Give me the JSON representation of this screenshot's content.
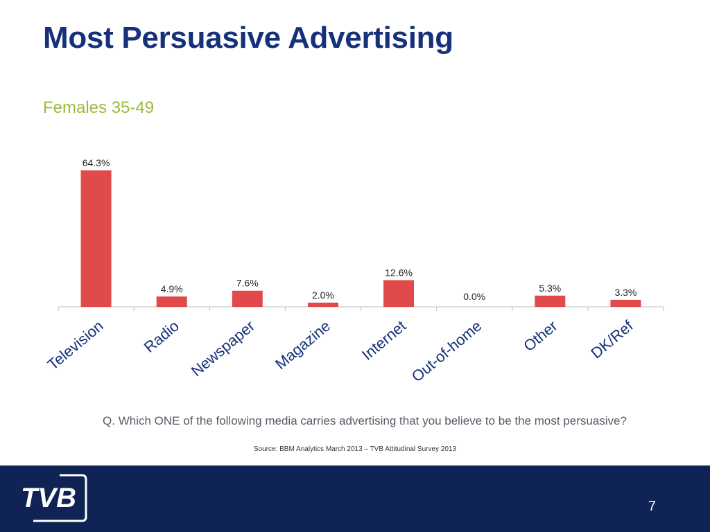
{
  "slide": {
    "title": "Most Persuasive Advertising",
    "subtitle": "Females 35-49",
    "question": "Q. Which ONE of the following media carries advertising that you believe to be the most persuasive?",
    "source": "Source: BBM Analytics March 2013 – TVB Attitudinal Survey 2013",
    "page_number": "7",
    "logo_text": "TVB"
  },
  "colors": {
    "title": "#16307a",
    "subtitle": "#9bbb3c",
    "bar": "#e04a4a",
    "category_label": "#16307a",
    "footer": "#0f2355"
  },
  "chart_data": {
    "type": "bar",
    "categories": [
      "Television",
      "Radio",
      "Newspaper",
      "Magazine",
      "Internet",
      "Out-of-home",
      "Other",
      "DK/Ref"
    ],
    "values": [
      64.3,
      4.9,
      7.6,
      2.0,
      12.6,
      0.0,
      5.3,
      3.3
    ],
    "data_labels": [
      "64.3%",
      "4.9%",
      "7.6%",
      "2.0%",
      "12.6%",
      "0.0%",
      "5.3%",
      "3.3%"
    ],
    "title": "",
    "xlabel": "",
    "ylabel": "",
    "ylim": [
      0,
      70
    ],
    "grid": false,
    "legend": "none"
  }
}
